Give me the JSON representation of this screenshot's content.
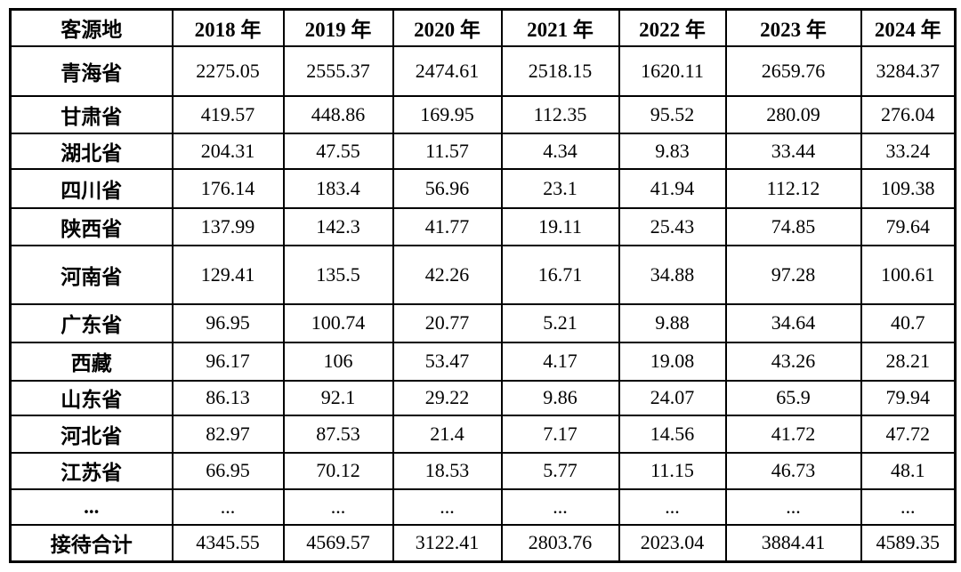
{
  "table": {
    "columns": [
      "客源地",
      "2018 年",
      "2019 年",
      "2020 年",
      "2021 年",
      "2022 年",
      "2023 年",
      "2024 年"
    ],
    "rows": [
      {
        "label": "青海省",
        "values": [
          "2275.05",
          "2555.37",
          "2474.61",
          "2518.15",
          "1620.11",
          "2659.76",
          "3284.37"
        ]
      },
      {
        "label": "甘肃省",
        "values": [
          "419.57",
          "448.86",
          "169.95",
          "112.35",
          "95.52",
          "280.09",
          "276.04"
        ]
      },
      {
        "label": "湖北省",
        "values": [
          "204.31",
          "47.55",
          "11.57",
          "4.34",
          "9.83",
          "33.44",
          "33.24"
        ]
      },
      {
        "label": "四川省",
        "values": [
          "176.14",
          "183.4",
          "56.96",
          "23.1",
          "41.94",
          "112.12",
          "109.38"
        ]
      },
      {
        "label": "陕西省",
        "values": [
          "137.99",
          "142.3",
          "41.77",
          "19.11",
          "25.43",
          "74.85",
          "79.64"
        ]
      },
      {
        "label": "河南省",
        "values": [
          "129.41",
          "135.5",
          "42.26",
          "16.71",
          "34.88",
          "97.28",
          "100.61"
        ]
      },
      {
        "label": "广东省",
        "values": [
          "96.95",
          "100.74",
          "20.77",
          "5.21",
          "9.88",
          "34.64",
          "40.7"
        ]
      },
      {
        "label": "西藏",
        "values": [
          "96.17",
          "106",
          "53.47",
          "4.17",
          "19.08",
          "43.26",
          "28.21"
        ]
      },
      {
        "label": "山东省",
        "values": [
          "86.13",
          "92.1",
          "29.22",
          "9.86",
          "24.07",
          "65.9",
          "79.94"
        ]
      },
      {
        "label": "河北省",
        "values": [
          "82.97",
          "87.53",
          "21.4",
          "7.17",
          "14.56",
          "41.72",
          "47.72"
        ]
      },
      {
        "label": "江苏省",
        "values": [
          "66.95",
          "70.12",
          "18.53",
          "5.77",
          "11.15",
          "46.73",
          "48.1"
        ]
      },
      {
        "label": "...",
        "values": [
          "...",
          "...",
          "...",
          "...",
          "...",
          "...",
          "..."
        ]
      },
      {
        "label": "接待合计",
        "values": [
          "4345.55",
          "4569.57",
          "3122.41",
          "2803.76",
          "2023.04",
          "3884.41",
          "4589.35"
        ]
      }
    ]
  }
}
